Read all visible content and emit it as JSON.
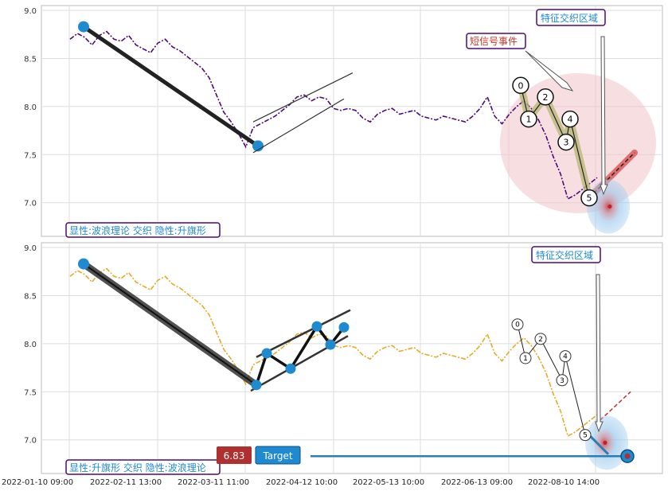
{
  "colors": {
    "price_top": "#4b0a7a",
    "price_bottom": "#e8a92a",
    "marker": "#1f8ad0",
    "box_border": "#4b0a7a",
    "label_blue": "#1f8ad0",
    "label_red": "#c0392b",
    "target_line": "#2a7fb0"
  },
  "top_panel": {
    "info_label": "显性:波浪理论 交织 隐性:升旗形",
    "feature_label": "特征交织区域",
    "short_signal_label": "短信号事件"
  },
  "bottom_panel": {
    "info_label": "显性:升旗形 交织 隐性:波浪理论",
    "feature_label": "特征交织区域",
    "price_badge": "6.83",
    "target_badge": "Target"
  },
  "chart_data": [
    {
      "type": "line",
      "panel": "top",
      "yticks": [
        "9.0",
        "8.5",
        "8.0",
        "7.5",
        "7.0"
      ],
      "ylim": [
        6.65,
        9.05
      ],
      "xtick_labels": [
        "2022-01-10 09:00",
        "2022-02-11 13:00",
        "2022-03-11 11:00",
        "2022-04-12 10:00",
        "2022-05-13 10:00",
        "2022-06-13 09:00",
        "2022-08-10 14:00"
      ],
      "series": [
        {
          "values": [
            8.7,
            8.76,
            8.72,
            8.64,
            8.74,
            8.78,
            8.7,
            8.68,
            8.74,
            8.64,
            8.6,
            8.56,
            8.66,
            8.7,
            8.62,
            8.58,
            8.52,
            8.46,
            8.4,
            8.3,
            8.12,
            7.94,
            7.84,
            7.72,
            7.58,
            7.78,
            7.82,
            7.86,
            7.9,
            7.96,
            8.02,
            8.1,
            8.12,
            8.06,
            8.1,
            8.08,
            7.98,
            7.96,
            7.98,
            7.96,
            7.88,
            7.84,
            7.92,
            7.96,
            7.98,
            7.92,
            7.94,
            7.96,
            7.9,
            7.88,
            7.86,
            7.9,
            7.88,
            7.86,
            7.84,
            7.9,
            7.98,
            8.1,
            7.9,
            7.82,
            7.92,
            8.0,
            8.06,
            7.98,
            7.86,
            7.7,
            7.48,
            7.3,
            7.04,
            7.08,
            7.14,
            7.2,
            7.26
          ]
        }
      ],
      "wave_labels": [
        "0",
        "1",
        "2",
        "3",
        "4",
        "5"
      ],
      "wave_values": [
        8.22,
        7.87,
        8.1,
        7.63,
        7.87,
        7.05
      ]
    },
    {
      "type": "line",
      "panel": "bottom",
      "yticks": [
        "9.0",
        "8.5",
        "8.0",
        "7.5",
        "7.0"
      ],
      "ylim": [
        6.65,
        9.05
      ],
      "xtick_labels": [
        "2022-01-10 09:00",
        "2022-02-11 13:00",
        "2022-03-11 11:00",
        "2022-04-12 10:00",
        "2022-05-13 10:00",
        "2022-06-13 09:00",
        "2022-08-10 14:00"
      ],
      "series": [
        {
          "values": [
            8.7,
            8.76,
            8.72,
            8.64,
            8.74,
            8.78,
            8.7,
            8.68,
            8.74,
            8.64,
            8.6,
            8.56,
            8.66,
            8.7,
            8.62,
            8.58,
            8.52,
            8.46,
            8.4,
            8.3,
            8.12,
            7.94,
            7.84,
            7.72,
            7.58,
            7.78,
            7.82,
            7.86,
            7.9,
            7.96,
            8.02,
            8.1,
            8.12,
            8.06,
            8.1,
            8.08,
            7.98,
            7.96,
            7.98,
            7.96,
            7.88,
            7.84,
            7.92,
            7.96,
            7.98,
            7.92,
            7.94,
            7.96,
            7.9,
            7.88,
            7.86,
            7.9,
            7.88,
            7.86,
            7.84,
            7.9,
            7.98,
            8.1,
            7.9,
            7.82,
            7.92,
            8.0,
            8.06,
            7.98,
            7.86,
            7.7,
            7.48,
            7.3,
            7.04,
            7.08,
            7.14,
            7.2,
            7.26
          ]
        }
      ],
      "wave_labels": [
        "0",
        "1",
        "2",
        "3",
        "4",
        "5"
      ],
      "wave_values": [
        8.2,
        7.85,
        8.05,
        7.62,
        7.87,
        7.05
      ],
      "target_value": 6.83
    }
  ]
}
